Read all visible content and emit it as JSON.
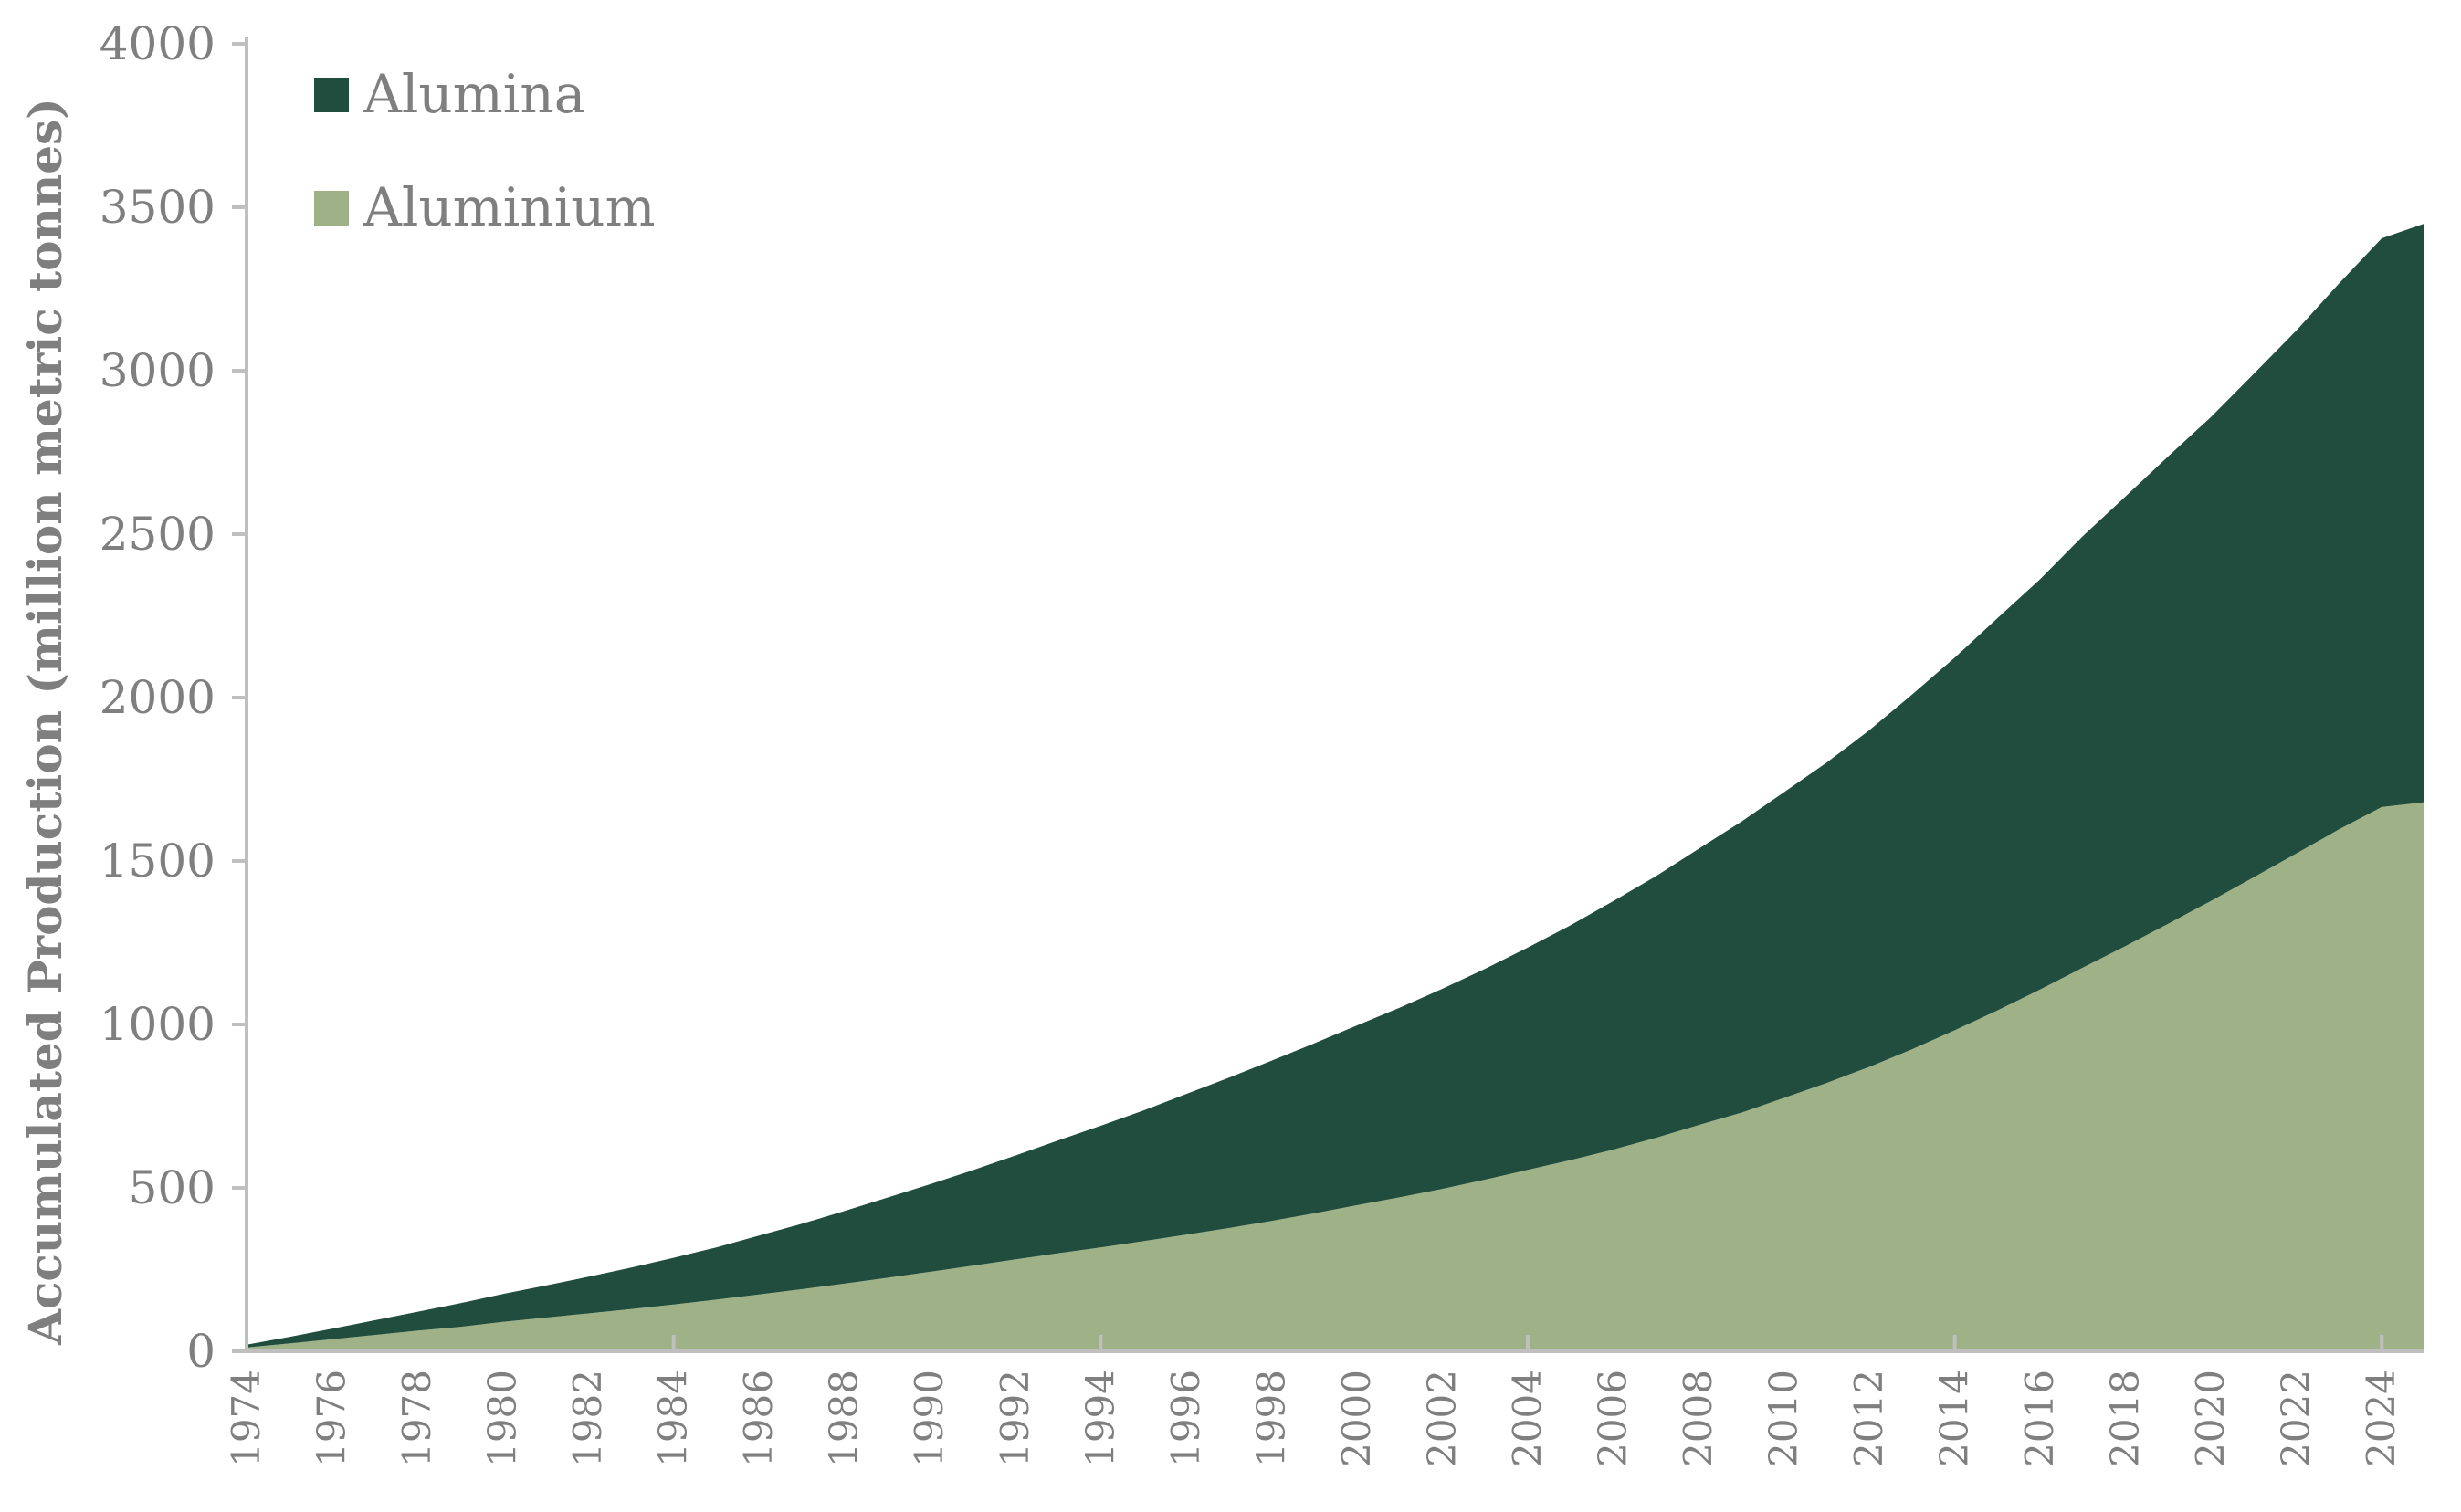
{
  "chart_data": {
    "type": "area",
    "stacked": true,
    "title": "",
    "xlabel": "",
    "ylabel": "Accumulated Production (million metric tonnes)",
    "ylim": [
      0,
      4000
    ],
    "y_ticks": [
      0,
      500,
      1000,
      1500,
      2000,
      2500,
      3000,
      3500,
      4000
    ],
    "x_tick_labels": [
      "1974",
      "1976",
      "1978",
      "1980",
      "1982",
      "1984",
      "1986",
      "1988",
      "1990",
      "1992",
      "1994",
      "1996",
      "1998",
      "2000",
      "2002",
      "2004",
      "2006",
      "2008",
      "2010",
      "2012",
      "2014",
      "2016",
      "2018",
      "2020",
      "2022",
      "2024"
    ],
    "xlim": [
      1974,
      2025
    ],
    "grid": false,
    "legend_position": "top-left",
    "x": [
      1974,
      1975,
      1976,
      1977,
      1978,
      1979,
      1980,
      1981,
      1982,
      1983,
      1984,
      1985,
      1986,
      1987,
      1988,
      1989,
      1990,
      1991,
      1992,
      1993,
      1994,
      1995,
      1996,
      1997,
      1998,
      1999,
      2000,
      2001,
      2002,
      2003,
      2004,
      2005,
      2006,
      2007,
      2008,
      2009,
      2010,
      2011,
      2012,
      2013,
      2014,
      2015,
      2016,
      2017,
      2018,
      2019,
      2020,
      2021,
      2022,
      2023,
      2024,
      2025
    ],
    "series": [
      {
        "name": "Aluminium",
        "color": "#9fb287",
        "values": [
          12,
          24,
          37,
          50,
          63,
          75,
          90,
          103,
          116,
          129,
          143,
          158,
          174,
          190,
          207,
          225,
          243,
          262,
          281,
          300,
          318,
          337,
          357,
          377,
          399,
          422,
          447,
          471,
          497,
          525,
          555,
          585,
          617,
          653,
          692,
          730,
          775,
          821,
          870,
          924,
          982,
          1043,
          1107,
          1174,
          1240,
          1308,
          1378,
          1450,
          1523,
          1597,
          1665,
          1680
        ]
      },
      {
        "name": "Alumina",
        "color": "#204d3d",
        "values": [
          8,
          20,
          32,
          45,
          58,
          72,
          85,
          98,
          112,
          127,
          143,
          160,
          180,
          200,
          222,
          245,
          268,
          292,
          318,
          345,
          372,
          400,
          430,
          460,
          490,
          520,
          550,
          580,
          612,
          645,
          680,
          718,
          760,
          800,
          845,
          890,
          935,
          980,
          1030,
          1085,
          1140,
          1200,
          1255,
          1320,
          1375,
          1430,
          1480,
          1540,
          1600,
          1670,
          1740,
          1770
        ]
      }
    ]
  }
}
